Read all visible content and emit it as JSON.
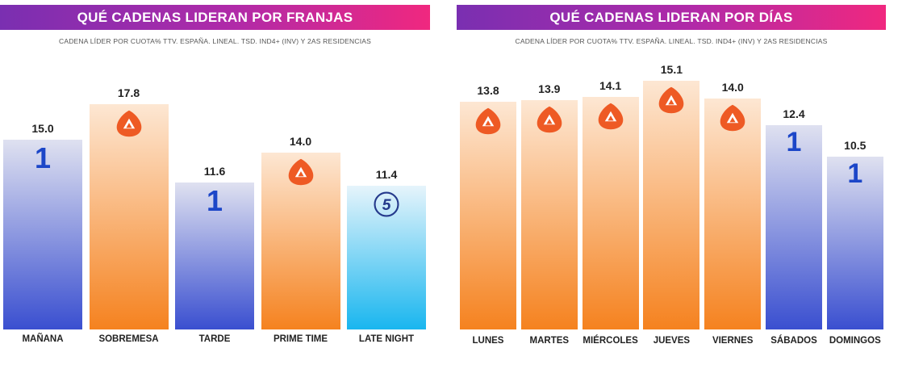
{
  "chart_data": [
    {
      "type": "bar",
      "title": "QUÉ CADENAS LIDERAN POR FRANJAS",
      "subtitle": "CADENA LÍDER POR CUOTA% TTV. ESPAÑA. LINEAL. TSD. IND4+ (INV) Y 2AS RESIDENCIAS",
      "categories": [
        "MAÑANA",
        "SOBREMESA",
        "TARDE",
        "PRIME TIME",
        "LATE NIGHT"
      ],
      "values": [
        15.0,
        17.8,
        11.6,
        14.0,
        11.4
      ],
      "labels": [
        "15.0",
        "17.8",
        "11.6",
        "14.0",
        "11.4"
      ],
      "leader_logos": [
        "one",
        "antena3",
        "one",
        "antena3",
        "telecinco"
      ],
      "ylim": [
        0,
        20
      ]
    },
    {
      "type": "bar",
      "title": "QUÉ CADENAS LIDERAN POR DÍAS",
      "subtitle": "CADENA LÍDER POR CUOTA% TTV. ESPAÑA. LINEAL. TSD. IND4+ (INV) Y 2AS RESIDENCIAS",
      "categories": [
        "LUNES",
        "MARTES",
        "MIÉRCOLES",
        "JUEVES",
        "VIERNES",
        "SÁBADOS",
        "DOMINGOS"
      ],
      "values": [
        13.8,
        13.9,
        14.1,
        15.1,
        14.0,
        12.4,
        10.5
      ],
      "labels": [
        "13.8",
        "13.9",
        "14.1",
        "15.1",
        "14.0",
        "12.4",
        "10.5"
      ],
      "leader_logos": [
        "antena3",
        "antena3",
        "antena3",
        "antena3",
        "antena3",
        "one",
        "one"
      ],
      "ylim": [
        0,
        20
      ]
    }
  ],
  "logos": {
    "one": "1",
    "telecinco": "5"
  },
  "colors": {
    "one_bar_top": "#dfe1f0",
    "one_bar_bottom": "#3a4fd0",
    "antena3_bar_top": "#fde7d3",
    "antena3_bar_bottom": "#f5821f",
    "telecinco_bar_top": "#e6f4fb",
    "telecinco_bar_bottom": "#19b6ef",
    "antena3_logo": "#ee5a24",
    "one_logo": "#1c46c8",
    "telecinco_logo": "#253a8c"
  }
}
